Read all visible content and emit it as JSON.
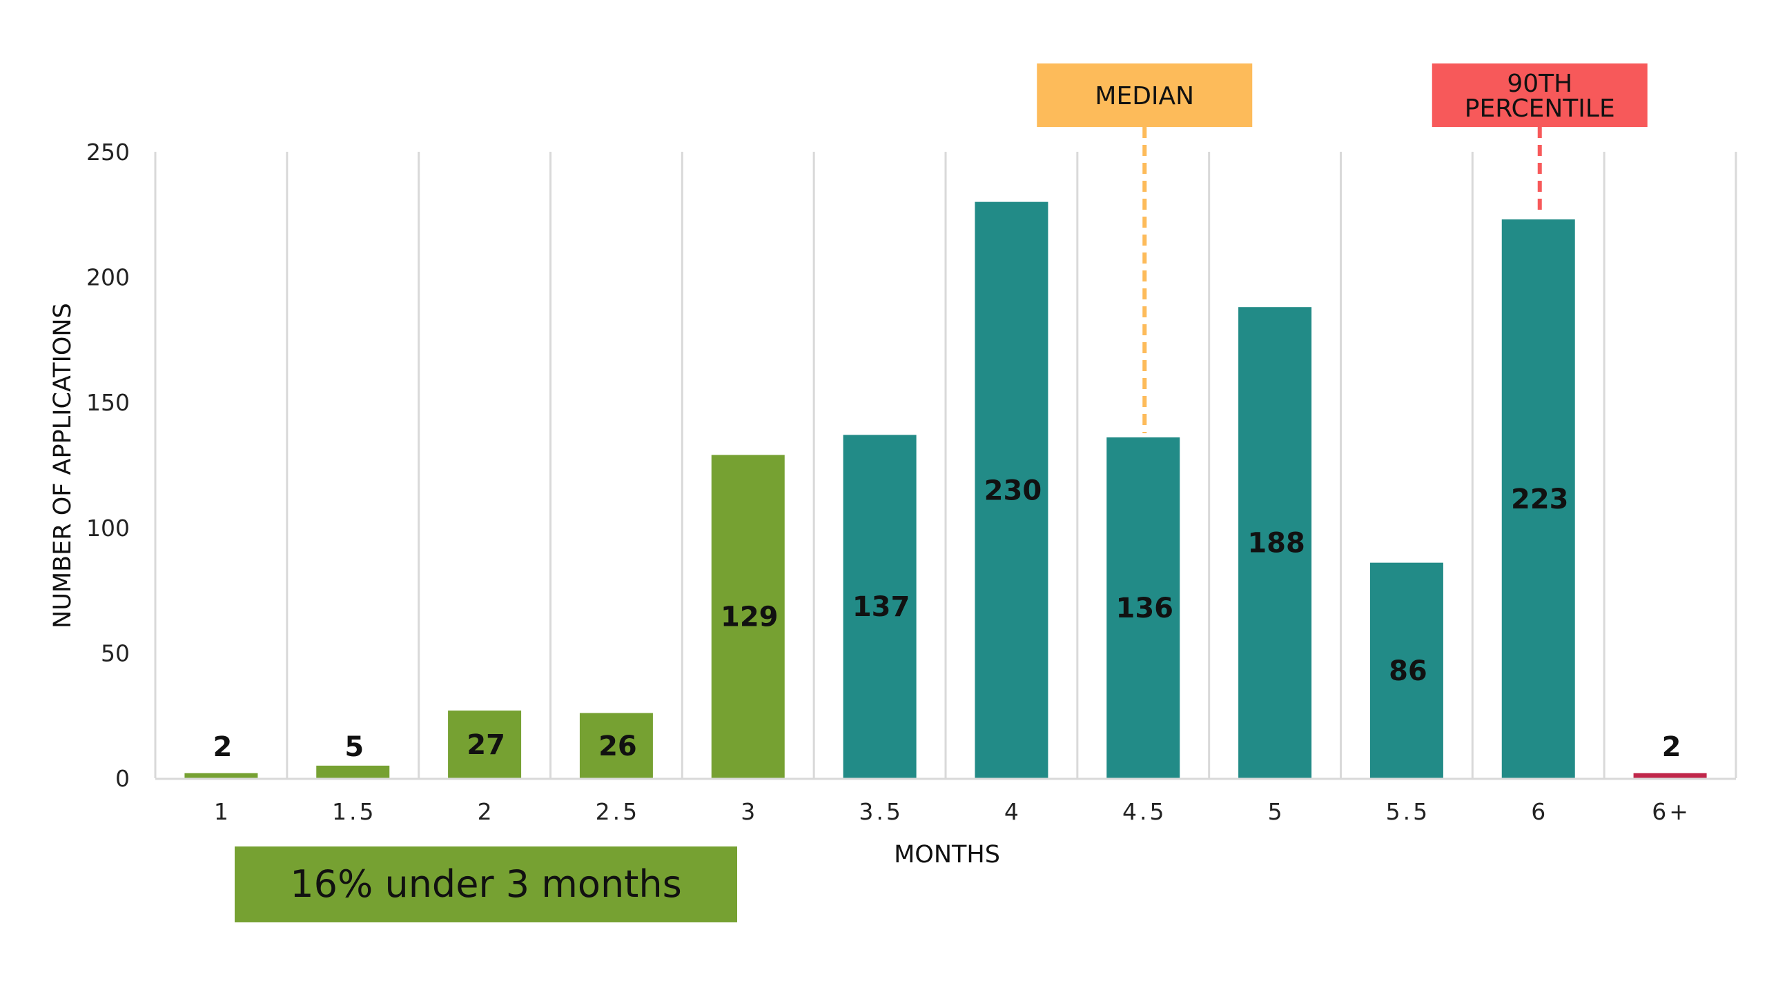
{
  "chart_data": {
    "type": "bar",
    "categories": [
      "1",
      "1.5",
      "2",
      "2.5",
      "3",
      "3.5",
      "4",
      "4.5",
      "5",
      "5.5",
      "6",
      "6+"
    ],
    "values": [
      2,
      5,
      27,
      26,
      129,
      137,
      230,
      136,
      188,
      86,
      223,
      2
    ],
    "data_labels": [
      "2",
      "5",
      "27",
      "26",
      "129",
      "137",
      "230",
      "136",
      "188",
      "86",
      "223",
      "2"
    ],
    "xlabel": "MONTHS",
    "ylabel": "NUMBER OF APPLICATIONS",
    "ylim": [
      0,
      250
    ],
    "yticks": [
      0,
      50,
      100,
      150,
      200,
      250
    ],
    "grid": "vertical lines between categories",
    "bar_colors": [
      "#76a132",
      "#76a132",
      "#76a132",
      "#76a132",
      "#76a132",
      "#228b87",
      "#228b87",
      "#228b87",
      "#228b87",
      "#228b87",
      "#228b87",
      "#c0264a"
    ],
    "annotations": [
      {
        "text": [
          "MEDIAN"
        ],
        "category": "4.5",
        "color": "#fdbb5a",
        "line_color": "#fdbb5a"
      },
      {
        "text": [
          "90TH",
          "PERCENTILE"
        ],
        "category": "6",
        "color": "#f7595a",
        "line_color": "#f7595a"
      }
    ],
    "note": {
      "text": "16% under 3 months",
      "spans": [
        "1",
        "2.5"
      ],
      "color": "#76a132"
    }
  }
}
